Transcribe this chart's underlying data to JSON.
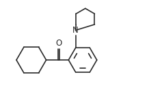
{
  "bg_color": "#ffffff",
  "line_color": "#2a2a2a",
  "line_width": 1.2,
  "figsize": [
    2.18,
    1.6
  ],
  "dpi": 100,
  "xlim": [
    0,
    10
  ],
  "ylim": [
    0,
    7.34
  ]
}
